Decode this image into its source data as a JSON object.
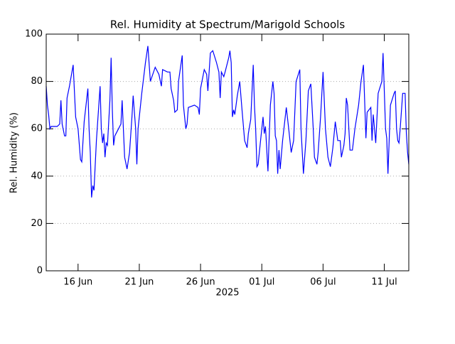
{
  "chart_data": {
    "type": "line",
    "title": "Rel. Humidity at Spectrum/Marigold Schools",
    "y_label": "Rel. Humidity (%)",
    "x_label": "2025",
    "x": [
      13.4,
      13.5,
      13.6,
      13.7,
      13.8,
      14.0,
      14.3,
      14.5,
      14.6,
      14.7,
      14.9,
      15.0,
      15.1,
      15.3,
      15.6,
      15.8,
      16.0,
      16.2,
      16.3,
      16.5,
      16.8,
      16.9,
      17.0,
      17.1,
      17.2,
      17.3,
      17.5,
      17.8,
      17.9,
      18.0,
      18.1,
      18.2,
      18.3,
      18.4,
      18.6,
      18.7,
      18.8,
      18.9,
      19.0,
      19.3,
      19.5,
      19.6,
      19.8,
      20.0,
      20.2,
      20.4,
      20.5,
      20.7,
      20.8,
      20.9,
      21.2,
      21.5,
      21.7,
      21.9,
      22.3,
      22.6,
      22.8,
      22.9,
      23.3,
      23.5,
      23.6,
      23.8,
      23.9,
      24.1,
      24.2,
      24.5,
      24.6,
      24.8,
      24.9,
      25.0,
      25.5,
      25.8,
      25.9,
      26.0,
      26.3,
      26.5,
      26.6,
      26.8,
      27.0,
      27.3,
      27.5,
      27.6,
      27.7,
      27.9,
      28.0,
      28.3,
      28.4,
      28.5,
      28.6,
      28.7,
      28.8,
      29.0,
      29.2,
      29.4,
      29.6,
      29.8,
      29.9,
      30.1,
      30.3,
      30.4,
      30.5,
      30.6,
      30.7,
      30.9,
      31.1,
      31.2,
      31.3,
      31.5,
      31.7,
      31.9,
      32.0,
      32.1,
      32.2,
      32.3,
      32.4,
      32.5,
      32.7,
      33.0,
      33.2,
      33.4,
      33.6,
      33.8,
      34.1,
      34.2,
      34.4,
      34.6,
      34.8,
      35.0,
      35.2,
      35.3,
      35.5,
      35.6,
      35.8,
      36.0,
      36.2,
      36.4,
      36.6,
      36.8,
      37.0,
      37.2,
      37.4,
      37.5,
      37.7,
      37.8,
      37.9,
      38.0,
      38.2,
      38.4,
      38.6,
      38.9,
      39.1,
      39.3,
      39.5,
      39.6,
      39.9,
      40.0,
      40.1,
      40.2,
      40.3,
      40.5,
      40.8,
      40.9,
      41.1,
      41.2,
      41.3,
      41.4,
      41.5,
      41.8,
      41.9,
      42.0,
      42.1,
      42.2,
      42.3,
      42.5,
      42.7,
      42.8,
      42.9,
      43.0
    ],
    "series": [
      {
        "name": "Rel. Humidity",
        "color": "#0000ff",
        "values": [
          78,
          70,
          66,
          60,
          61,
          61,
          61,
          62,
          72,
          62,
          57,
          57,
          73,
          78,
          87,
          65,
          60,
          47,
          46,
          63,
          77,
          60,
          50,
          31,
          36,
          34,
          55,
          78,
          60,
          54,
          58,
          48,
          54,
          53,
          72,
          90,
          68,
          53,
          57,
          60,
          62,
          72,
          48,
          43,
          50,
          65,
          74,
          60,
          45,
          60,
          75,
          88,
          95,
          80,
          86,
          83,
          78,
          85,
          84,
          84,
          77,
          72,
          67,
          68,
          80,
          91,
          70,
          60,
          62,
          69,
          70,
          69,
          66,
          77,
          85,
          83,
          76,
          92,
          93,
          88,
          84,
          73,
          84,
          82,
          84,
          90,
          93,
          88,
          65,
          68,
          66,
          74,
          80,
          67,
          55,
          52,
          58,
          64,
          87,
          70,
          60,
          44,
          45,
          55,
          65,
          58,
          61,
          42,
          70,
          80,
          75,
          57,
          55,
          41,
          51,
          43,
          55,
          69,
          60,
          50,
          55,
          80,
          85,
          60,
          41,
          55,
          76,
          79,
          60,
          48,
          45,
          50,
          65,
          84,
          60,
          48,
          44,
          52,
          63,
          55,
          55,
          48,
          53,
          58,
          73,
          70,
          51,
          51,
          60,
          70,
          80,
          87,
          56,
          67,
          69,
          55,
          66,
          60,
          54,
          75,
          80,
          92,
          60,
          56,
          41,
          55,
          70,
          75,
          76,
          60,
          55,
          54,
          60,
          75,
          75,
          58,
          50,
          45
        ]
      }
    ],
    "xlim": [
      13.4,
      43.0
    ],
    "xticks": [
      {
        "value": 16,
        "label": "16 Jun"
      },
      {
        "value": 21,
        "label": "21 Jun"
      },
      {
        "value": 26,
        "label": "26 Jun"
      },
      {
        "value": 31,
        "label": "01 Jul"
      },
      {
        "value": 36,
        "label": "06 Jul"
      },
      {
        "value": 41,
        "label": "11 Jul"
      }
    ],
    "ylim": [
      0,
      100
    ],
    "yticks": [
      0,
      20,
      40,
      60,
      80,
      100
    ],
    "grid": true
  }
}
